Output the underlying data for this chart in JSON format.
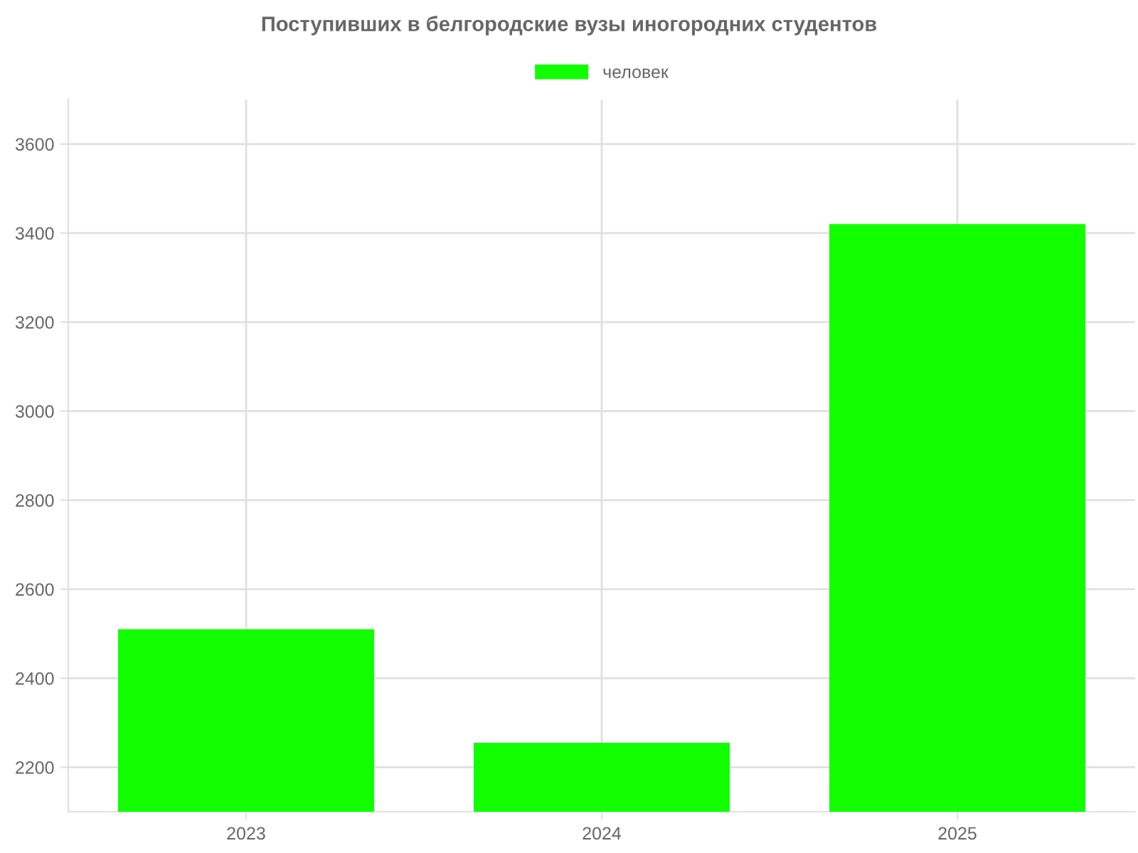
{
  "chart_data": {
    "type": "bar",
    "title": "Поступивших в белгородские вузы иногородних студентов",
    "categories": [
      "2023",
      "2024",
      "2025"
    ],
    "series": [
      {
        "name": "человек",
        "color": "#11ff00",
        "values": [
          2510,
          2255,
          3420
        ]
      }
    ],
    "ylim": [
      2100,
      3700
    ],
    "yticks": [
      2200,
      2400,
      2600,
      2800,
      3000,
      3200,
      3400,
      3600
    ],
    "grid": true,
    "legend": "top"
  }
}
